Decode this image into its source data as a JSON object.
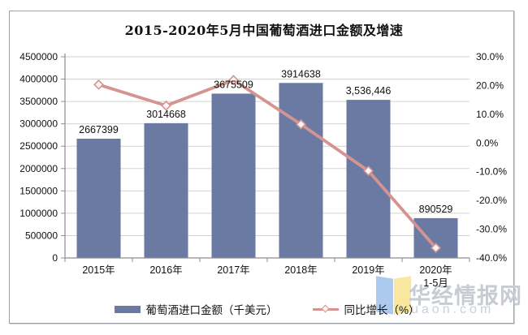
{
  "title": "2015-2020年5月中国葡萄酒进口金额及增速",
  "colors": {
    "bar": "#6b7aa3",
    "line": "#d49492",
    "marker_fill": "#fbf4f3",
    "grid": "#d2d2d2",
    "axis": "#8c8c8c",
    "text": "#111111",
    "watermark_text": "#c7cbd2",
    "watermark_domain": "#c9d0da",
    "logo_blue": "#abcaee",
    "logo_yellow": "#f9e7a0"
  },
  "chart_data": {
    "type": "combo bar+line",
    "title": "2015-2020年5月中国葡萄酒进口金额及增速",
    "categories": [
      [
        "2015年"
      ],
      [
        "2016年"
      ],
      [
        "2017年"
      ],
      [
        "2018年"
      ],
      [
        "2019年"
      ],
      [
        "2020年",
        "1-5月"
      ]
    ],
    "series": [
      {
        "name": "葡萄酒进口金额（千美元）",
        "type": "bar",
        "axis": "left",
        "values": [
          2667399,
          3014668,
          3675509,
          3914638,
          3536446,
          890529
        ],
        "value_labels": [
          "2667399",
          "3014668",
          "3675509",
          "3914638",
          "3,536,446",
          "890529"
        ]
      },
      {
        "name": "同比增长（%）",
        "type": "line",
        "axis": "right",
        "values": [
          20.3,
          13.0,
          21.9,
          6.5,
          -9.7,
          -36.5
        ]
      }
    ],
    "left_axis": {
      "min": 0,
      "max": 4500000,
      "step": 500000,
      "tick_labels": [
        "4500000",
        "4000000",
        "3500000",
        "3000000",
        "2500000",
        "2000000",
        "1500000",
        "1000000",
        "500000",
        "0"
      ]
    },
    "right_axis": {
      "min": -40,
      "max": 30,
      "step": 10,
      "tick_labels": [
        "30.0%",
        "20.0%",
        "10.0%",
        "0.0%",
        "-10.0%",
        "-20.0%",
        "-30.0%",
        "-40.0%"
      ]
    },
    "grid": true,
    "legend_position": "bottom"
  },
  "legend": {
    "bar_label": "葡萄酒进口金额（千美元）",
    "line_label": "同比增长（%）"
  },
  "watermark": {
    "text": "华经情报网",
    "domain": "uaon.com"
  }
}
